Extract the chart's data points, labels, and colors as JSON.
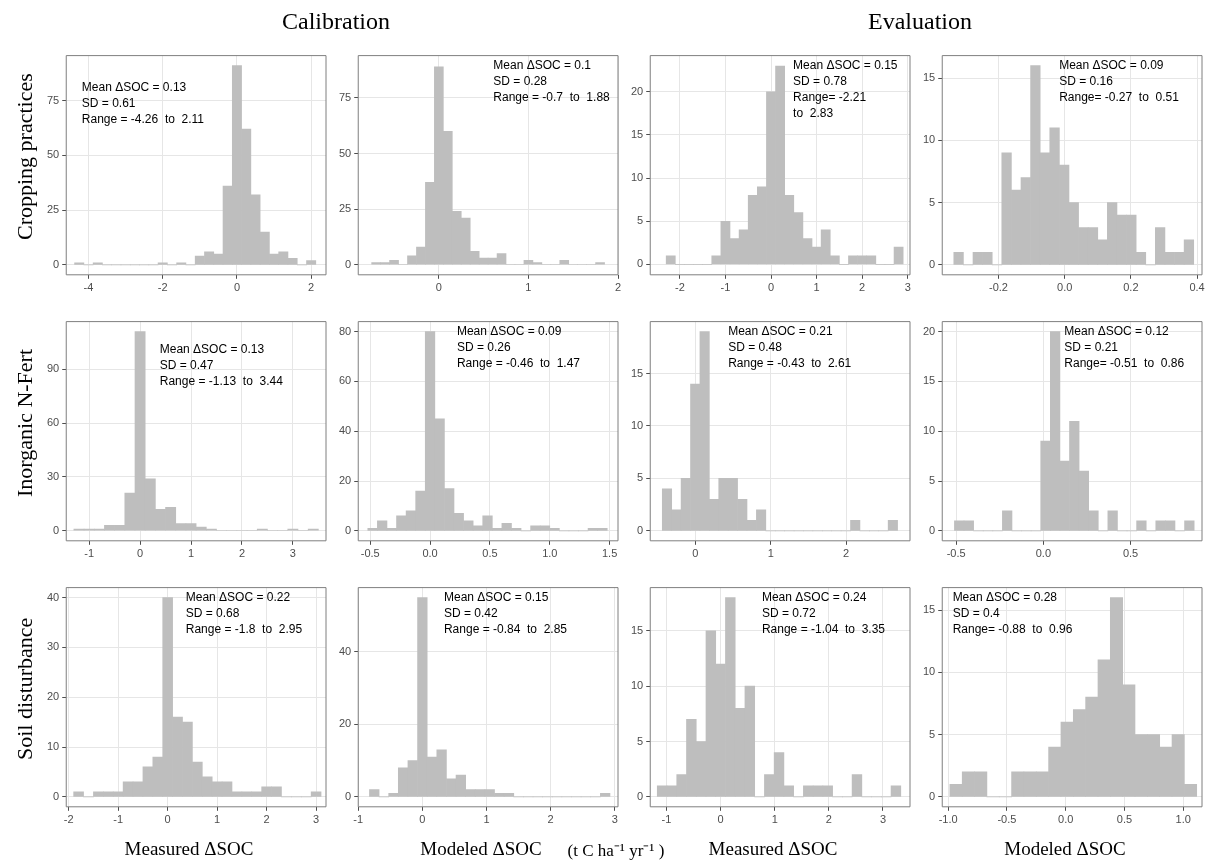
{
  "chart_data": [
    {
      "type": "histogram",
      "title": "Calibration",
      "ylabel": "Cropping practices",
      "color": "#bebebe",
      "grid": true,
      "bins": [
        -4.375,
        -4.125,
        -3.875,
        -3.625,
        -3.375,
        -3.125,
        -2.875,
        -2.625,
        -2.375,
        -2.125,
        -1.875,
        -1.625,
        -1.375,
        -1.125,
        -0.875,
        -0.625,
        -0.375,
        -0.125,
        0.125,
        0.375,
        0.625,
        0.875,
        1.125,
        1.375,
        1.625,
        1.875,
        2.125
      ],
      "values": [
        1,
        0,
        1,
        0,
        0,
        0,
        0,
        0,
        0,
        1,
        0,
        1,
        0,
        4,
        6,
        5,
        36,
        91,
        62,
        32,
        15,
        5,
        6,
        3,
        0,
        2
      ],
      "xlim": [
        -4.6,
        2.4
      ],
      "xticks": [
        -4,
        -2,
        0,
        2
      ],
      "ylim": [
        -4.5,
        95.5
      ],
      "yticks": [
        0,
        25,
        50,
        75
      ],
      "annotations": [
        "Mean ΔSOC = 0.13",
        "SD = 0.61",
        "Range = -4.26  to  2.11"
      ]
    },
    {
      "type": "histogram",
      "color": "#bebebe",
      "grid": true,
      "bins": [
        -0.75,
        -0.65,
        -0.55,
        -0.45,
        -0.35,
        -0.25,
        -0.15,
        -0.05,
        0.05,
        0.15,
        0.25,
        0.35,
        0.45,
        0.55,
        0.65,
        0.75,
        0.85,
        0.95,
        1.05,
        1.15,
        1.25,
        1.35,
        1.45,
        1.55,
        1.65,
        1.75,
        1.85
      ],
      "values": [
        1,
        1,
        2,
        0,
        4,
        8,
        37,
        89,
        60,
        24,
        21,
        6,
        3,
        3,
        5,
        0,
        0,
        2,
        1,
        0,
        0,
        2,
        0,
        0,
        0,
        1
      ],
      "xlim": [
        -0.9,
        2.0
      ],
      "xticks": [
        0,
        1,
        2
      ],
      "ylim": [
        -4.5,
        94
      ],
      "yticks": [
        0,
        25,
        50,
        75
      ],
      "annotations": [
        "Mean ΔSOC = 0.1",
        "SD = 0.28",
        "Range = -0.7  to  1.88"
      ]
    },
    {
      "type": "histogram",
      "title": "Evaluation",
      "color": "#bebebe",
      "grid": true,
      "bins": [
        -2.3,
        -2.1,
        -1.9,
        -1.7,
        -1.5,
        -1.3,
        -1.1,
        -0.9,
        -0.7,
        -0.5,
        -0.3,
        -0.1,
        0.1,
        0.3,
        0.5,
        0.7,
        0.9,
        1.1,
        1.3,
        1.5,
        1.7,
        1.9,
        2.1,
        2.3,
        2.5,
        2.7,
        2.9
      ],
      "values": [
        1,
        0,
        0,
        0,
        0,
        1,
        5,
        3,
        4,
        8,
        9,
        20,
        23,
        8,
        6,
        3,
        2,
        4,
        1,
        0,
        1,
        1,
        1,
        0,
        0,
        2
      ],
      "xlim": [
        -2.65,
        3.05
      ],
      "xticks": [
        -2,
        -1,
        0,
        1,
        2,
        3
      ],
      "ylim": [
        -1.2,
        24.2
      ],
      "yticks": [
        0,
        5,
        10,
        15,
        20
      ],
      "annotations": [
        "Mean ΔSOC = 0.15",
        "SD = 0.78",
        "Range= -2.21",
        "to  2.83"
      ]
    },
    {
      "type": "histogram",
      "color": "#bebebe",
      "grid": true,
      "bins": [
        -0.335,
        -0.306,
        -0.277,
        -0.248,
        -0.219,
        -0.19,
        -0.161,
        -0.132,
        -0.103,
        -0.074,
        -0.045,
        -0.016,
        0.013,
        0.042,
        0.071,
        0.1,
        0.129,
        0.158,
        0.187,
        0.216,
        0.245,
        0.274,
        0.303,
        0.332,
        0.361,
        0.39
      ],
      "values": [
        1,
        0,
        1,
        1,
        0,
        9,
        6,
        7,
        16,
        9,
        11,
        8,
        5,
        3,
        3,
        2,
        5,
        4,
        4,
        1,
        0,
        3,
        1,
        1,
        2
      ],
      "xlim": [
        -0.37,
        0.415
      ],
      "xticks": [
        -0.2,
        {
          "value": 0,
          "label": "0.0"
        },
        0.2,
        0.4
      ],
      "ylim": [
        -0.8,
        16.8
      ],
      "yticks": [
        0,
        5,
        10,
        15
      ],
      "annotations": [
        "Mean ΔSOC = 0.09",
        "SD = 0.16",
        "Range= -0.27  to  0.51"
      ]
    },
    {
      "type": "histogram",
      "ylabel": "Inorganic N-Fert",
      "color": "#bebebe",
      "grid": true,
      "bins": [
        -1.3,
        -1.1,
        -0.9,
        -0.7,
        -0.5,
        -0.3,
        -0.1,
        0.1,
        0.3,
        0.5,
        0.7,
        0.9,
        1.1,
        1.3,
        1.5,
        1.7,
        1.9,
        2.1,
        2.3,
        2.5,
        2.7,
        2.9,
        3.1,
        3.3,
        3.5
      ],
      "values": [
        1,
        1,
        1,
        3,
        3,
        21,
        111,
        29,
        12,
        13,
        4,
        4,
        2,
        1,
        0,
        0,
        0,
        0,
        1,
        0,
        0,
        1,
        0,
        1
      ],
      "xlim": [
        -1.45,
        3.65
      ],
      "xticks": [
        -1,
        0,
        1,
        2,
        3
      ],
      "ylim": [
        -5.6,
        116.6
      ],
      "yticks": [
        0,
        30,
        60,
        90
      ],
      "annotations": [
        "Mean ΔSOC = 0.13",
        "SD = 0.47",
        "Range = -1.13  to  3.44"
      ]
    },
    {
      "type": "histogram",
      "color": "#bebebe",
      "grid": true,
      "bins": [
        -0.52,
        -0.44,
        -0.36,
        -0.28,
        -0.2,
        -0.12,
        -0.04,
        0.04,
        0.12,
        0.2,
        0.28,
        0.36,
        0.44,
        0.52,
        0.6,
        0.68,
        0.76,
        0.84,
        0.92,
        1,
        1.08,
        1.16,
        1.24,
        1.32,
        1.4,
        1.48
      ],
      "values": [
        1,
        4,
        1,
        6,
        8,
        16,
        80,
        45,
        17,
        7,
        4,
        2,
        6,
        1,
        3,
        1,
        0,
        2,
        2,
        1,
        0,
        0,
        0,
        1,
        1
      ],
      "xlim": [
        -0.6,
        1.57
      ],
      "xticks": [
        -0.5,
        {
          "value": 0,
          "label": "0.0"
        },
        0.5,
        {
          "value": 1,
          "label": "1.0"
        },
        1.5
      ],
      "ylim": [
        -4,
        84
      ],
      "yticks": [
        0,
        20,
        40,
        60,
        80
      ],
      "annotations": [
        "Mean ΔSOC = 0.09",
        "SD = 0.26",
        "Range = -0.46  to  1.47"
      ]
    },
    {
      "type": "histogram",
      "color": "#bebebe",
      "grid": true,
      "bins": [
        -0.44,
        -0.315,
        -0.19,
        -0.065,
        0.06,
        0.185,
        0.31,
        0.435,
        0.56,
        0.685,
        0.81,
        0.935,
        1.06,
        1.185,
        1.31,
        1.435,
        1.56,
        1.685,
        1.81,
        1.935,
        2.06,
        2.185,
        2.31,
        2.435,
        2.56,
        2.685
      ],
      "values": [
        4,
        2,
        5,
        14,
        19,
        3,
        5,
        5,
        3,
        1,
        2,
        0,
        0,
        0,
        0,
        0,
        0,
        0,
        0,
        0,
        1,
        0,
        0,
        0,
        1
      ],
      "xlim": [
        -0.6,
        2.85
      ],
      "xticks": [
        0,
        1,
        2
      ],
      "ylim": [
        -0.95,
        19.95
      ],
      "yticks": [
        0,
        5,
        10,
        15
      ],
      "annotations": [
        "Mean ΔSOC = 0.21",
        "SD = 0.48",
        "Range = -0.43  to  2.61"
      ]
    },
    {
      "type": "histogram",
      "color": "#bebebe",
      "grid": true,
      "bins": [
        -0.51,
        -0.455,
        -0.4,
        -0.345,
        -0.29,
        -0.235,
        -0.18,
        -0.125,
        -0.07,
        -0.015,
        0.04,
        0.095,
        0.15,
        0.205,
        0.26,
        0.315,
        0.37,
        0.425,
        0.48,
        0.535,
        0.59,
        0.645,
        0.7,
        0.755,
        0.81,
        0.865
      ],
      "values": [
        1,
        1,
        0,
        0,
        0,
        2,
        0,
        0,
        0,
        9,
        20,
        7,
        11,
        6,
        2,
        0,
        2,
        0,
        0,
        1,
        0,
        1,
        1,
        0,
        1
      ],
      "xlim": [
        -0.58,
        0.91
      ],
      "xticks": [
        -0.5,
        {
          "value": 0,
          "label": "0.0"
        },
        0.5
      ],
      "ylim": [
        -1,
        21
      ],
      "yticks": [
        0,
        5,
        10,
        15,
        20
      ],
      "annotations": [
        "Mean ΔSOC = 0.12",
        "SD = 0.21",
        "Range= -0.51  to  0.86"
      ]
    },
    {
      "type": "histogram",
      "ylabel": "Soil disturbance",
      "xlabel": "Measured ΔSOC",
      "color": "#bebebe",
      "grid": true,
      "bins": [
        -1.9,
        -1.7,
        -1.5,
        -1.3,
        -1.1,
        -0.9,
        -0.7,
        -0.5,
        -0.3,
        -0.1,
        0.1,
        0.3,
        0.5,
        0.7,
        0.9,
        1.1,
        1.3,
        1.5,
        1.7,
        1.9,
        2.1,
        2.3,
        2.5,
        2.7,
        2.9,
        3.1
      ],
      "values": [
        1,
        0,
        1,
        1,
        1,
        3,
        3,
        6,
        8,
        40,
        16,
        15,
        7,
        4,
        3,
        3,
        1,
        1,
        1,
        2,
        2,
        0,
        0,
        0,
        1
      ],
      "xlim": [
        -2.05,
        3.2
      ],
      "xticks": [
        -2,
        -1,
        0,
        1,
        2,
        3
      ],
      "ylim": [
        -2,
        42
      ],
      "yticks": [
        0,
        10,
        20,
        30,
        40
      ],
      "annotations": [
        "Mean ΔSOC = 0.22",
        "SD = 0.68",
        "Range = -1.8  to  2.95"
      ]
    },
    {
      "type": "histogram",
      "xlabel": "Modeled ΔSOC",
      "color": "#bebebe",
      "grid": true,
      "bins": [
        -0.825,
        -0.675,
        -0.525,
        -0.375,
        -0.225,
        -0.075,
        0.075,
        0.225,
        0.375,
        0.525,
        0.675,
        0.825,
        0.975,
        1.125,
        1.275,
        1.425,
        1.575,
        1.725,
        1.875,
        2.025,
        2.175,
        2.325,
        2.475,
        2.625,
        2.775,
        2.925
      ],
      "values": [
        2,
        0,
        1,
        8,
        10,
        55,
        11,
        13,
        5,
        6,
        2,
        2,
        2,
        1,
        1,
        0,
        0,
        0,
        0,
        0,
        0,
        0,
        0,
        0,
        1
      ],
      "xlim": [
        -1.0,
        3.05
      ],
      "xticks": [
        -1,
        0,
        1,
        2,
        3
      ],
      "ylim": [
        -2.75,
        57.75
      ],
      "yticks": [
        0,
        20,
        40
      ],
      "annotations": [
        "Mean ΔSOC = 0.15",
        "SD = 0.42",
        "Range = -0.84  to  2.85",
        "(t C ha⁻¹ yr⁻¹ )"
      ]
    },
    {
      "type": "histogram",
      "xlabel": "Measured ΔSOC",
      "color": "#bebebe",
      "grid": true,
      "bins": [
        -1.17,
        -0.99,
        -0.81,
        -0.63,
        -0.45,
        -0.27,
        -0.09,
        0.09,
        0.27,
        0.45,
        0.63,
        0.81,
        0.99,
        1.17,
        1.35,
        1.53,
        1.71,
        1.89,
        2.07,
        2.25,
        2.43,
        2.61,
        2.79,
        2.97,
        3.15,
        3.33
      ],
      "values": [
        1,
        1,
        2,
        7,
        5,
        15,
        12,
        18,
        8,
        10,
        0,
        2,
        4,
        1,
        0,
        1,
        1,
        1,
        0,
        0,
        2,
        0,
        0,
        0,
        1
      ],
      "xlim": [
        -1.3,
        3.5
      ],
      "xticks": [
        -1,
        0,
        1,
        2,
        3
      ],
      "ylim": [
        -0.9,
        18.9
      ],
      "yticks": [
        0,
        5,
        10,
        15
      ],
      "annotations": [
        "Mean ΔSOC = 0.24",
        "SD = 0.72",
        "Range = -1.04  to  3.35"
      ]
    },
    {
      "type": "histogram",
      "xlabel": "Modeled ΔSOC",
      "color": "#bebebe",
      "grid": true,
      "bins": [
        -0.985,
        -0.88,
        -0.775,
        -0.67,
        -0.565,
        -0.46,
        -0.355,
        -0.25,
        -0.145,
        -0.04,
        0.065,
        0.17,
        0.275,
        0.38,
        0.485,
        0.59,
        0.695,
        0.8,
        0.905,
        1.01,
        1.115
      ],
      "values": [
        1,
        2,
        2,
        0,
        0,
        2,
        2,
        2,
        4,
        6,
        7,
        8,
        11,
        16,
        9,
        5,
        5,
        4,
        5,
        1
      ],
      "xlim": [
        -1.05,
        1.16
      ],
      "xticks": [
        {
          "value": -1,
          "label": "-1.0"
        },
        -0.5,
        {
          "value": 0,
          "label": "0.0"
        },
        0.5,
        {
          "value": 1,
          "label": "1.0"
        }
      ],
      "ylim": [
        -0.8,
        16.8
      ],
      "yticks": [
        0,
        5,
        10,
        15
      ],
      "annotations": [
        "Mean ΔSOC = 0.28",
        "SD = 0.4",
        "Range= -0.88  to  0.96"
      ]
    }
  ]
}
